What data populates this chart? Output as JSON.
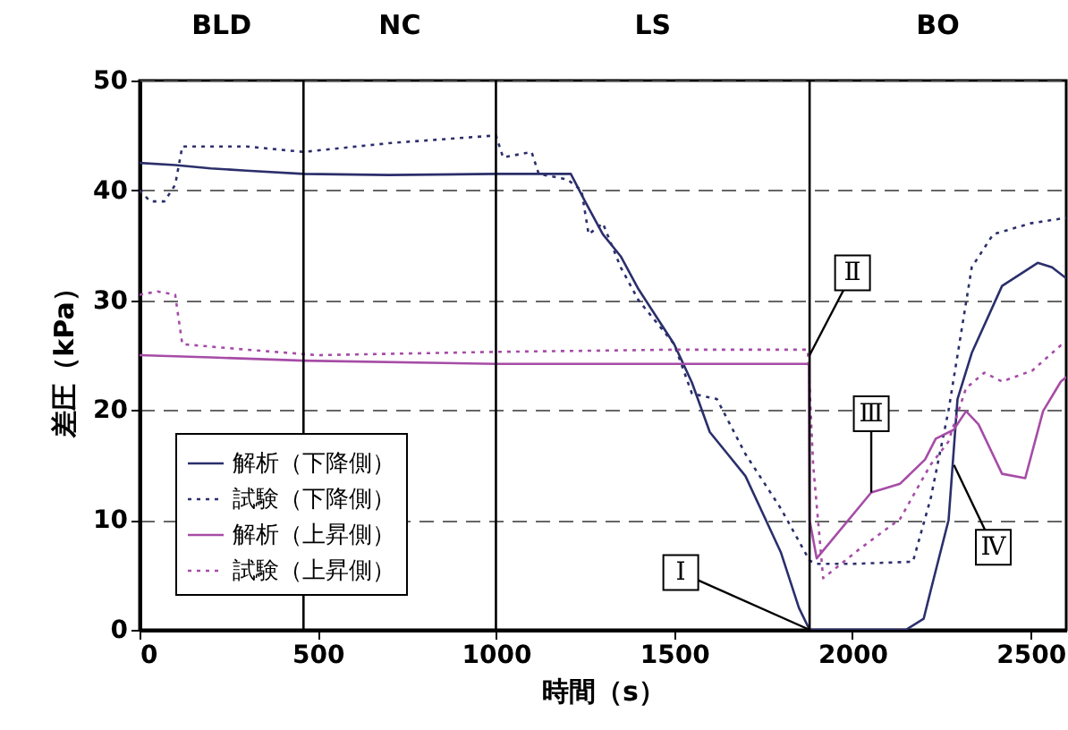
{
  "chart_data": {
    "type": "line",
    "xlabel": "時間（s）",
    "ylabel": "差圧（kPa）",
    "xlim": [
      0,
      2600
    ],
    "xticks": [
      0,
      500,
      1000,
      1500,
      2000,
      2500
    ],
    "ylim": [
      0,
      50
    ],
    "yticks": [
      0,
      10,
      20,
      30,
      40,
      50
    ],
    "grid": "y",
    "legend": "bottom left",
    "series": [
      {
        "name": "解析（下降側）",
        "color": "#2b2f6b",
        "line_style": "solid",
        "x": [
          0,
          100,
          200,
          300,
          460,
          700,
          1000,
          1210,
          1250,
          1300,
          1350,
          1400,
          1450,
          1500,
          1550,
          1600,
          1650,
          1700,
          1750,
          1800,
          1850,
          1880,
          2000,
          2150,
          2200,
          2220,
          2270,
          2295,
          2335,
          2420,
          2520,
          2560,
          2600
        ],
        "values": [
          42.5,
          42.3,
          42,
          41.8,
          41.5,
          41.4,
          41.5,
          41.5,
          39,
          36,
          34,
          31,
          28.5,
          26,
          22.5,
          18,
          16,
          14,
          10.5,
          7,
          2,
          0,
          0,
          0,
          1,
          3.6,
          10,
          21,
          25.2,
          31.3,
          33.4,
          33,
          32
        ]
      },
      {
        "name": "試験（下降側）",
        "color": "#2b2f6b",
        "line_style": "dotted",
        "x": [
          0,
          30,
          70,
          100,
          120,
          300,
          460,
          700,
          1000,
          1020,
          1100,
          1120,
          1200,
          1240,
          1260,
          1300,
          1350,
          1400,
          1500,
          1550,
          1620,
          1700,
          1800,
          1880,
          1900,
          2000,
          2170,
          2220,
          2270,
          2335,
          2395,
          2500,
          2600
        ],
        "values": [
          40,
          39,
          39,
          40.5,
          44,
          44,
          43.5,
          44.3,
          45,
          43,
          43.5,
          41.5,
          41,
          40,
          36,
          37,
          33,
          30,
          26,
          21.5,
          21,
          16,
          11,
          6.3,
          6,
          6,
          6.2,
          12,
          20,
          33,
          36,
          37,
          37.5
        ]
      },
      {
        "name": "解析（上昇側）",
        "color": "#a64ca6",
        "line_style": "solid",
        "x": [
          0,
          200,
          460,
          1000,
          1500,
          1878,
          1880,
          1900,
          2053,
          2134,
          2204,
          2234,
          2284,
          2319,
          2354,
          2420,
          2485,
          2535,
          2585,
          2600
        ],
        "values": [
          25,
          24.8,
          24.5,
          24.2,
          24.2,
          24.2,
          10,
          6.5,
          12.5,
          13.3,
          15.5,
          17.4,
          18.2,
          19.9,
          18.7,
          14.2,
          13.8,
          19.9,
          22.6,
          23
        ]
      },
      {
        "name": "試験（上昇側）",
        "color": "#a64ca6",
        "line_style": "dotted",
        "x": [
          0,
          50,
          100,
          120,
          300,
          500,
          1000,
          1500,
          1875,
          1890,
          1918,
          2018,
          2134,
          2219,
          2269,
          2319,
          2370,
          2420,
          2505,
          2585,
          2600
        ],
        "values": [
          30.5,
          30.8,
          30.5,
          26,
          25.5,
          25,
          25.3,
          25.5,
          25.5,
          15,
          4.7,
          7.3,
          10.1,
          15,
          17.1,
          22,
          23.4,
          22.6,
          23.6,
          25.9,
          26
        ]
      }
    ],
    "ref_lines": [
      {
        "axis": "x",
        "value": 460,
        "color": "#000000"
      },
      {
        "axis": "x",
        "value": 1000,
        "color": "#000000"
      },
      {
        "axis": "x",
        "value": 1880,
        "color": "#000000"
      }
    ],
    "annotations": [
      "BLD",
      "NC",
      "LS",
      "BO",
      {
        "text": "Ⅰ",
        "x": 1880,
        "y": 0
      },
      {
        "text": "Ⅱ",
        "x": 1880,
        "y": 25
      },
      {
        "text": "Ⅲ",
        "x": 2053,
        "y": 12.5
      },
      {
        "text": "Ⅳ",
        "x": 2285,
        "y": 15
      }
    ]
  }
}
